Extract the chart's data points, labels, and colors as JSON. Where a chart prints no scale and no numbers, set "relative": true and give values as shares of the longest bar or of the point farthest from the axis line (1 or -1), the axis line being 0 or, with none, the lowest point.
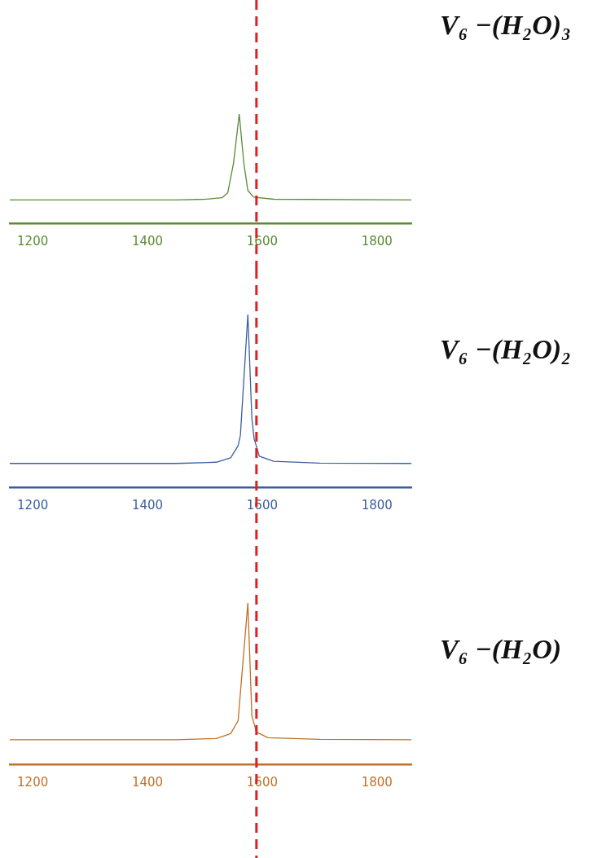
{
  "chart_data": [
    {
      "type": "line",
      "relative": true,
      "xlim": [
        1160,
        1860
      ],
      "xticks": [
        1200,
        1400,
        1600,
        1800
      ],
      "x": [
        1160,
        1450,
        1500,
        1530,
        1540,
        1550,
        1560,
        1568,
        1575,
        1585,
        1620,
        1860
      ],
      "series": [
        {
          "name": "V₆ −(H₂O)₃",
          "color": "#5a8a32",
          "values": [
            0.213,
            0.213,
            0.22,
            0.234,
            0.28,
            0.55,
            1.0,
            0.55,
            0.3,
            0.24,
            0.22,
            0.213
          ]
        }
      ],
      "ref_lines": [
        {
          "axis": "x",
          "value": 1590,
          "color": "#e02020",
          "line_style": "dashed"
        }
      ]
    },
    {
      "type": "line",
      "relative": true,
      "xlim": [
        1160,
        1860
      ],
      "xticks": [
        1200,
        1400,
        1600,
        1800
      ],
      "x": [
        1160,
        1450,
        1520,
        1545,
        1558,
        1562,
        1575,
        1582,
        1586,
        1595,
        1620,
        1700,
        1860
      ],
      "series": [
        {
          "name": "V₆ −(H₂O)₂",
          "color": "#3a5ea0",
          "values": [
            0.138,
            0.138,
            0.145,
            0.17,
            0.24,
            0.3,
            1.0,
            0.4,
            0.28,
            0.18,
            0.15,
            0.14,
            0.138
          ]
        }
      ],
      "ref_lines": [
        {
          "axis": "x",
          "value": 1590,
          "color": "#e02020",
          "line_style": "dashed"
        }
      ]
    },
    {
      "type": "line",
      "relative": true,
      "xlim": [
        1160,
        1860
      ],
      "xticks": [
        1200,
        1400,
        1600,
        1800
      ],
      "x": [
        1160,
        1450,
        1520,
        1545,
        1558,
        1575,
        1582,
        1590,
        1610,
        1700,
        1860
      ],
      "series": [
        {
          "name": "V₆ −(H₂O)",
          "color": "#c07028",
          "values": [
            0.152,
            0.152,
            0.16,
            0.19,
            0.27,
            1.0,
            0.3,
            0.2,
            0.165,
            0.155,
            0.152
          ]
        }
      ],
      "ref_lines": [
        {
          "axis": "x",
          "value": 1590,
          "color": "#e02020",
          "line_style": "dashed"
        }
      ]
    }
  ]
}
